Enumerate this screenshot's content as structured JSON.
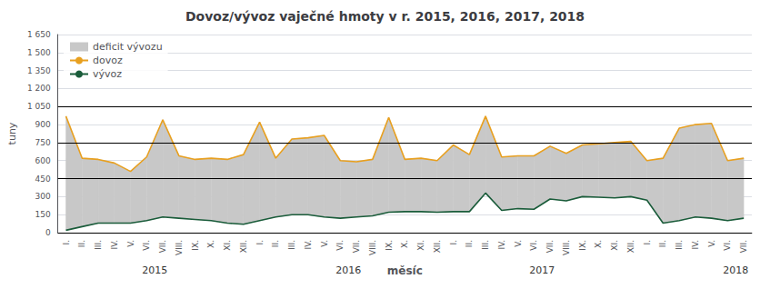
{
  "chart_data": {
    "type": "line",
    "title": "Dovoz/vývoz vaječné hmoty v r. 2015, 2016, 2017, 2018",
    "ylabel": "tuny",
    "xlabel": "měsíc",
    "categories": [
      "I.",
      "II.",
      "III.",
      "IV.",
      "V.",
      "VI.",
      "VII.",
      "VIII.",
      "IX.",
      "X.",
      "XI.",
      "XII.",
      "I.",
      "II.",
      "III.",
      "IV.",
      "V.",
      "VI.",
      "VII.",
      "VIII.",
      "IX.",
      "X.",
      "XI.",
      "XII.",
      "I.",
      "II.",
      "III.",
      "IV.",
      "V.",
      "VI.",
      "VII.",
      "VIII.",
      "IX.",
      "X.",
      "XI.",
      "XII.",
      "I.",
      "II.",
      "III.",
      "IV.",
      "V.",
      "VI.",
      "VII."
    ],
    "series": [
      {
        "name": "dovoz",
        "color": "#e8a020",
        "values": [
          970,
          620,
          610,
          580,
          510,
          630,
          940,
          640,
          610,
          620,
          610,
          650,
          920,
          620,
          780,
          790,
          810,
          600,
          590,
          610,
          960,
          610,
          620,
          600,
          730,
          650,
          970,
          630,
          640,
          640,
          720,
          660,
          730,
          740,
          750,
          760,
          600,
          620,
          870,
          900,
          910,
          600,
          620
        ]
      },
      {
        "name": "vývoz",
        "color": "#1a5c3a",
        "values": [
          20,
          50,
          80,
          80,
          80,
          100,
          130,
          120,
          110,
          100,
          80,
          70,
          100,
          130,
          150,
          150,
          130,
          120,
          130,
          140,
          170,
          175,
          175,
          170,
          175,
          175,
          330,
          185,
          200,
          195,
          280,
          265,
          300,
          295,
          290,
          300,
          270,
          80,
          100,
          130,
          120,
          100,
          120
        ]
      }
    ],
    "fills": [
      {
        "name": "deficit vývozu",
        "color": "#c8c8c8",
        "from": "vývoz",
        "to": "dovoz"
      }
    ],
    "reference_lines": {
      "values": [
        0,
        450,
        750,
        1050
      ],
      "color": "#000000"
    },
    "annotations": [
      {
        "text": "2015",
        "x": 5.5
      },
      {
        "text": "2016",
        "x": 17.5
      },
      {
        "text": "2017",
        "x": 29.5
      },
      {
        "text": "2018",
        "x": 41.5
      }
    ],
    "ylim": [
      0,
      1650
    ],
    "yticks": [
      0,
      150,
      300,
      450,
      600,
      750,
      900,
      {
        "value": 1050,
        "label": "1 050"
      },
      {
        "value": 1200,
        "label": "1 200"
      },
      {
        "value": 1350,
        "label": "1 350"
      },
      {
        "value": 1500,
        "label": "1 500"
      },
      {
        "value": 1650,
        "label": "1 650"
      }
    ],
    "grid": true,
    "legend": "upper left"
  }
}
